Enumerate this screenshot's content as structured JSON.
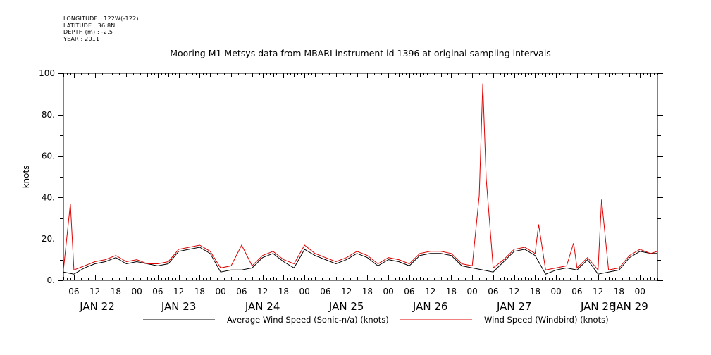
{
  "meta": {
    "longitude": "LONGITUDE : 122W(-122)",
    "latitude": "LATITUDE : 36.8N",
    "depth": "DEPTH (m) : -2.5",
    "year": "YEAR : 2011"
  },
  "chart_data": {
    "type": "line",
    "title": "Mooring M1 Metsys data from MBARI instrument id 1396 at original sampling intervals",
    "ylabel": "knots",
    "xlabel": "",
    "ylim": [
      0,
      100
    ],
    "y_ticks": [
      "0.",
      "20.",
      "40.",
      "60.",
      "80.",
      "100"
    ],
    "x_range_hours": [
      "2011-01-22T03:00",
      "2011-01-29T05:00"
    ],
    "x_hour_ticks": [
      "06",
      "12",
      "18",
      "00",
      "06",
      "12",
      "18",
      "00",
      "06",
      "12",
      "18",
      "00",
      "06",
      "12",
      "18",
      "00",
      "06",
      "12",
      "18",
      "00",
      "06",
      "12",
      "18",
      "00",
      "06",
      "12",
      "18",
      "00",
      "06",
      "12",
      "18",
      "00"
    ],
    "x_day_labels": [
      "JAN 22",
      "JAN 23",
      "JAN 24",
      "JAN 25",
      "JAN 26",
      "JAN 27",
      "JAN 28",
      "JAN 29"
    ],
    "grid": false,
    "legend_position": "bottom",
    "series": [
      {
        "name": "Average Wind Speed (Sonic-n/a) (knots)",
        "color": "#000000",
        "points": [
          [
            "2011-01-22T03:00",
            4
          ],
          [
            "2011-01-22T06:00",
            3
          ],
          [
            "2011-01-22T09:00",
            6
          ],
          [
            "2011-01-22T12:00",
            8
          ],
          [
            "2011-01-22T15:00",
            9
          ],
          [
            "2011-01-22T18:00",
            11
          ],
          [
            "2011-01-22T21:00",
            8
          ],
          [
            "2011-01-23T00:00",
            9
          ],
          [
            "2011-01-23T03:00",
            8
          ],
          [
            "2011-01-23T06:00",
            7
          ],
          [
            "2011-01-23T09:00",
            8
          ],
          [
            "2011-01-23T12:00",
            14
          ],
          [
            "2011-01-23T15:00",
            15
          ],
          [
            "2011-01-23T18:00",
            16
          ],
          [
            "2011-01-23T21:00",
            13
          ],
          [
            "2011-01-24T00:00",
            4
          ],
          [
            "2011-01-24T03:00",
            5
          ],
          [
            "2011-01-24T06:00",
            5
          ],
          [
            "2011-01-24T09:00",
            6
          ],
          [
            "2011-01-24T12:00",
            11
          ],
          [
            "2011-01-24T15:00",
            13
          ],
          [
            "2011-01-24T18:00",
            9
          ],
          [
            "2011-01-24T21:00",
            6
          ],
          [
            "2011-01-25T00:00",
            15
          ],
          [
            "2011-01-25T03:00",
            12
          ],
          [
            "2011-01-25T06:00",
            10
          ],
          [
            "2011-01-25T09:00",
            8
          ],
          [
            "2011-01-25T12:00",
            10
          ],
          [
            "2011-01-25T15:00",
            13
          ],
          [
            "2011-01-25T18:00",
            11
          ],
          [
            "2011-01-25T21:00",
            7
          ],
          [
            "2011-01-26T00:00",
            10
          ],
          [
            "2011-01-26T03:00",
            9
          ],
          [
            "2011-01-26T06:00",
            7
          ],
          [
            "2011-01-26T09:00",
            12
          ],
          [
            "2011-01-26T12:00",
            13
          ],
          [
            "2011-01-26T15:00",
            13
          ],
          [
            "2011-01-26T18:00",
            12
          ],
          [
            "2011-01-26T21:00",
            7
          ],
          [
            "2011-01-27T00:00",
            6
          ],
          [
            "2011-01-27T03:00",
            5
          ],
          [
            "2011-01-27T06:00",
            4
          ],
          [
            "2011-01-27T09:00",
            9
          ],
          [
            "2011-01-27T12:00",
            14
          ],
          [
            "2011-01-27T15:00",
            15
          ],
          [
            "2011-01-27T18:00",
            12
          ],
          [
            "2011-01-27T21:00",
            3
          ],
          [
            "2011-01-28T00:00",
            5
          ],
          [
            "2011-01-28T03:00",
            6
          ],
          [
            "2011-01-28T06:00",
            5
          ],
          [
            "2011-01-28T09:00",
            10
          ],
          [
            "2011-01-28T12:00",
            3
          ],
          [
            "2011-01-28T15:00",
            4
          ],
          [
            "2011-01-28T18:00",
            5
          ],
          [
            "2011-01-28T21:00",
            11
          ],
          [
            "2011-01-29T00:00",
            14
          ],
          [
            "2011-01-29T03:00",
            13
          ],
          [
            "2011-01-29T05:00",
            13
          ]
        ]
      },
      {
        "name": "Wind Speed (Windbird) (knots)",
        "color": "#e00000",
        "points": [
          [
            "2011-01-22T03:00",
            5
          ],
          [
            "2011-01-22T05:00",
            37
          ],
          [
            "2011-01-22T06:00",
            5
          ],
          [
            "2011-01-22T09:00",
            7
          ],
          [
            "2011-01-22T12:00",
            9
          ],
          [
            "2011-01-22T15:00",
            10
          ],
          [
            "2011-01-22T18:00",
            12
          ],
          [
            "2011-01-22T21:00",
            9
          ],
          [
            "2011-01-23T00:00",
            10
          ],
          [
            "2011-01-23T03:00",
            8
          ],
          [
            "2011-01-23T06:00",
            8
          ],
          [
            "2011-01-23T09:00",
            9
          ],
          [
            "2011-01-23T12:00",
            15
          ],
          [
            "2011-01-23T15:00",
            16
          ],
          [
            "2011-01-23T18:00",
            17
          ],
          [
            "2011-01-23T21:00",
            14
          ],
          [
            "2011-01-24T00:00",
            6
          ],
          [
            "2011-01-24T03:00",
            7
          ],
          [
            "2011-01-24T06:00",
            17
          ],
          [
            "2011-01-24T09:00",
            7
          ],
          [
            "2011-01-24T12:00",
            12
          ],
          [
            "2011-01-24T15:00",
            14
          ],
          [
            "2011-01-24T18:00",
            10
          ],
          [
            "2011-01-24T21:00",
            8
          ],
          [
            "2011-01-25T00:00",
            17
          ],
          [
            "2011-01-25T03:00",
            13
          ],
          [
            "2011-01-25T06:00",
            11
          ],
          [
            "2011-01-25T09:00",
            9
          ],
          [
            "2011-01-25T12:00",
            11
          ],
          [
            "2011-01-25T15:00",
            14
          ],
          [
            "2011-01-25T18:00",
            12
          ],
          [
            "2011-01-25T21:00",
            8
          ],
          [
            "2011-01-26T00:00",
            11
          ],
          [
            "2011-01-26T03:00",
            10
          ],
          [
            "2011-01-26T06:00",
            8
          ],
          [
            "2011-01-26T09:00",
            13
          ],
          [
            "2011-01-26T12:00",
            14
          ],
          [
            "2011-01-26T15:00",
            14
          ],
          [
            "2011-01-26T18:00",
            13
          ],
          [
            "2011-01-26T21:00",
            8
          ],
          [
            "2011-01-27T00:00",
            7
          ],
          [
            "2011-01-27T02:00",
            41
          ],
          [
            "2011-01-27T03:00",
            95
          ],
          [
            "2011-01-27T04:00",
            49
          ],
          [
            "2011-01-27T06:00",
            6
          ],
          [
            "2011-01-27T09:00",
            10
          ],
          [
            "2011-01-27T12:00",
            15
          ],
          [
            "2011-01-27T15:00",
            16
          ],
          [
            "2011-01-27T18:00",
            13
          ],
          [
            "2011-01-27T19:00",
            27
          ],
          [
            "2011-01-27T21:00",
            5
          ],
          [
            "2011-01-28T00:00",
            6
          ],
          [
            "2011-01-28T03:00",
            7
          ],
          [
            "2011-01-28T05:00",
            18
          ],
          [
            "2011-01-28T06:00",
            6
          ],
          [
            "2011-01-28T09:00",
            11
          ],
          [
            "2011-01-28T12:00",
            5
          ],
          [
            "2011-01-28T13:00",
            39
          ],
          [
            "2011-01-28T15:00",
            5
          ],
          [
            "2011-01-28T18:00",
            6
          ],
          [
            "2011-01-28T21:00",
            12
          ],
          [
            "2011-01-29T00:00",
            15
          ],
          [
            "2011-01-29T03:00",
            13
          ],
          [
            "2011-01-29T05:00",
            14
          ]
        ]
      }
    ]
  }
}
